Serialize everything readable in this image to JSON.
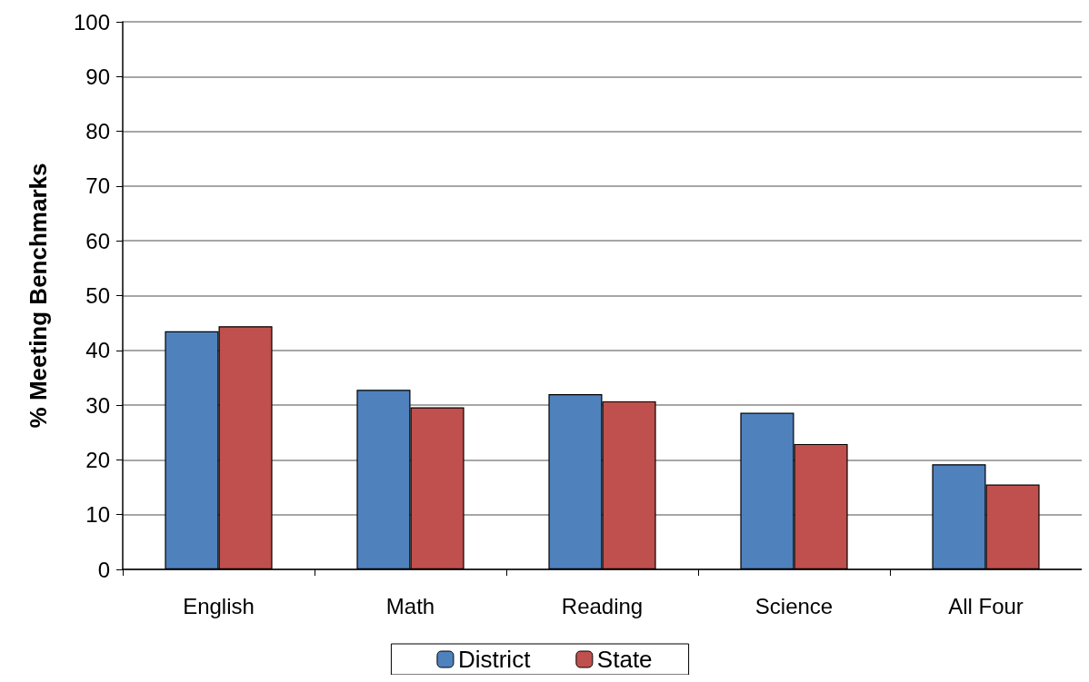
{
  "chart_data": {
    "type": "bar",
    "ylabel": "% Meeting Benchmarks",
    "categories": [
      "English",
      "Math",
      "Reading",
      "Science",
      "All Four"
    ],
    "series": [
      {
        "name": "District",
        "color": "#4f81bd",
        "values": [
          43.5,
          32.8,
          32.0,
          28.6,
          19.2
        ]
      },
      {
        "name": "State",
        "color": "#c0504d",
        "values": [
          44.4,
          29.6,
          30.7,
          22.9,
          15.5
        ]
      }
    ],
    "ylim": [
      0,
      100
    ],
    "yticks": [
      0,
      10,
      20,
      30,
      40,
      50,
      60,
      70,
      80,
      90,
      100
    ],
    "grid": "y",
    "legend": "bottom"
  }
}
